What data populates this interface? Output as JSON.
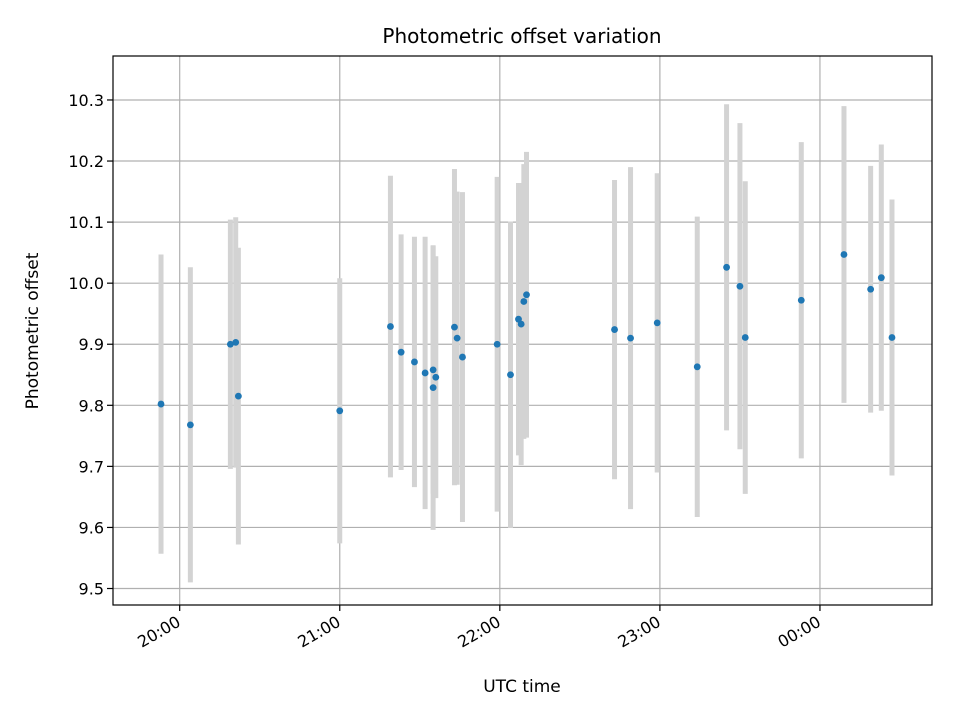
{
  "chart_data": {
    "type": "scatter",
    "title": "Photometric offset variation",
    "xlabel": "UTC time",
    "ylabel": "Photometric offset",
    "x_axis_type": "time",
    "x_ticks": [
      "20:00",
      "21:00",
      "22:00",
      "23:00",
      "00:00"
    ],
    "y_ticks": [
      "9.5",
      "9.6",
      "9.7",
      "9.8",
      "9.9",
      "10.0",
      "10.1",
      "10.2",
      "10.3"
    ],
    "ylim": [
      9.473,
      10.372
    ],
    "xlim": [
      "19:35",
      "00:42"
    ],
    "grid": true,
    "colors": {
      "point": "#1f77b4",
      "errorbar": "#d3d3d3",
      "grid": "#b0b0b0"
    },
    "points": [
      {
        "x": "19:53",
        "y": 9.802,
        "err": 0.245
      },
      {
        "x": "20:04",
        "y": 9.768,
        "err": 0.258
      },
      {
        "x": "20:19",
        "y": 9.9,
        "err": 0.204
      },
      {
        "x": "20:21",
        "y": 9.903,
        "err": 0.205
      },
      {
        "x": "20:22",
        "y": 9.815,
        "err": 0.243
      },
      {
        "x": "21:00",
        "y": 9.791,
        "err": 0.217
      },
      {
        "x": "21:19",
        "y": 9.929,
        "err": 0.247
      },
      {
        "x": "21:23",
        "y": 9.887,
        "err": 0.193
      },
      {
        "x": "21:28",
        "y": 9.871,
        "err": 0.205
      },
      {
        "x": "21:32",
        "y": 9.853,
        "err": 0.223
      },
      {
        "x": "21:35",
        "y": 9.858,
        "err": 0.203
      },
      {
        "x": "21:35",
        "y": 9.829,
        "err": 0.233
      },
      {
        "x": "21:36",
        "y": 9.846,
        "err": 0.198
      },
      {
        "x": "21:43",
        "y": 9.928,
        "err": 0.259
      },
      {
        "x": "21:44",
        "y": 9.91,
        "err": 0.24
      },
      {
        "x": "21:46",
        "y": 9.879,
        "err": 0.27
      },
      {
        "x": "21:59",
        "y": 9.9,
        "err": 0.274
      },
      {
        "x": "22:04",
        "y": 9.85,
        "err": 0.251
      },
      {
        "x": "22:07",
        "y": 9.941,
        "err": 0.223
      },
      {
        "x": "22:08",
        "y": 9.933,
        "err": 0.231
      },
      {
        "x": "22:09",
        "y": 9.97,
        "err": 0.225
      },
      {
        "x": "22:10",
        "y": 9.981,
        "err": 0.234
      },
      {
        "x": "22:43",
        "y": 9.924,
        "err": 0.245
      },
      {
        "x": "22:49",
        "y": 9.91,
        "err": 0.28
      },
      {
        "x": "22:59",
        "y": 9.935,
        "err": 0.245
      },
      {
        "x": "23:14",
        "y": 9.863,
        "err": 0.246
      },
      {
        "x": "23:25",
        "y": 10.026,
        "err": 0.267
      },
      {
        "x": "23:30",
        "y": 9.995,
        "err": 0.267
      },
      {
        "x": "23:32",
        "y": 9.911,
        "err": 0.256
      },
      {
        "x": "23:53",
        "y": 9.972,
        "err": 0.259
      },
      {
        "x": "00:09",
        "y": 10.047,
        "err": 0.243
      },
      {
        "x": "00:19",
        "y": 9.99,
        "err": 0.202
      },
      {
        "x": "00:23",
        "y": 10.009,
        "err": 0.218
      },
      {
        "x": "00:27",
        "y": 9.911,
        "err": 0.226
      }
    ]
  }
}
